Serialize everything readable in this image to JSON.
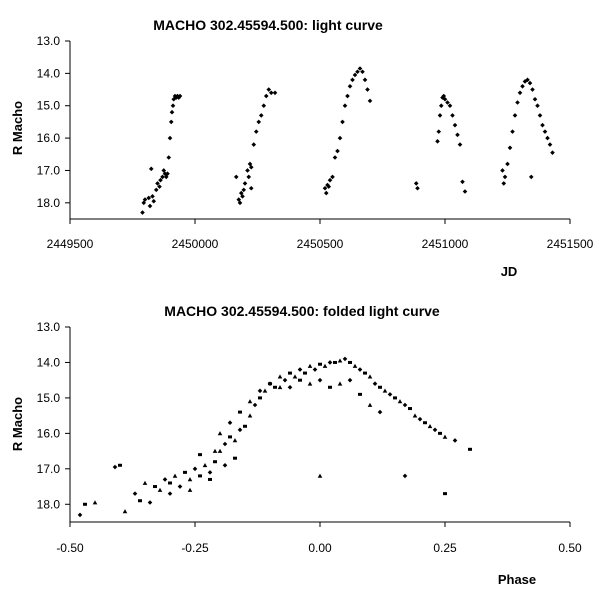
{
  "chart_data": [
    {
      "type": "scatter",
      "title": "MACHO 302.45594.500: light curve",
      "xlabel": "JD",
      "ylabel": "R Macho",
      "xlim": [
        2449500,
        2451500
      ],
      "ylim": [
        13.0,
        18.5
      ],
      "y_inverted": true,
      "grid": false,
      "xticks": [
        "2449500",
        "2450000",
        "2450500",
        "2451000",
        "2451500"
      ],
      "yticks": [
        "13.0",
        "14.0",
        "15.0",
        "16.0",
        "17.0",
        "18.0"
      ],
      "marker": "diamond",
      "series": [
        {
          "color": "#000000",
          "points": [
            [
              2449790,
              18.3
            ],
            [
              2449795,
              18.0
            ],
            [
              2449800,
              17.9
            ],
            [
              2449815,
              17.85
            ],
            [
              2449820,
              18.1
            ],
            [
              2449830,
              17.8
            ],
            [
              2449835,
              17.95
            ],
            [
              2449845,
              17.6
            ],
            [
              2449850,
              17.4
            ],
            [
              2449858,
              17.5
            ],
            [
              2449862,
              17.3
            ],
            [
              2449870,
              17.2
            ],
            [
              2449875,
              17.0
            ],
            [
              2449880,
              17.1
            ],
            [
              2449885,
              17.2
            ],
            [
              2449890,
              17.1
            ],
            [
              2449895,
              16.6
            ],
            [
              2449900,
              16.0
            ],
            [
              2449905,
              15.5
            ],
            [
              2449908,
              15.2
            ],
            [
              2449912,
              15.0
            ],
            [
              2449915,
              14.8
            ],
            [
              2449920,
              14.7
            ],
            [
              2449925,
              14.75
            ],
            [
              2449930,
              14.7
            ],
            [
              2449935,
              14.75
            ],
            [
              2449940,
              14.7
            ],
            [
              2449825,
              16.95
            ],
            [
              2450165,
              17.2
            ],
            [
              2450175,
              17.9
            ],
            [
              2450180,
              18.0
            ],
            [
              2450185,
              17.7
            ],
            [
              2450190,
              17.8
            ],
            [
              2450195,
              17.6
            ],
            [
              2450200,
              17.4
            ],
            [
              2450210,
              17.0
            ],
            [
              2450215,
              17.2
            ],
            [
              2450220,
              16.8
            ],
            [
              2450225,
              16.9
            ],
            [
              2450235,
              16.2
            ],
            [
              2450245,
              15.8
            ],
            [
              2450255,
              15.5
            ],
            [
              2450265,
              15.3
            ],
            [
              2450275,
              15.0
            ],
            [
              2450285,
              14.7
            ],
            [
              2450295,
              14.5
            ],
            [
              2450305,
              14.6
            ],
            [
              2450320,
              14.6
            ],
            [
              2450225,
              17.55
            ],
            [
              2450520,
              17.55
            ],
            [
              2450525,
              17.7
            ],
            [
              2450530,
              17.45
            ],
            [
              2450535,
              17.5
            ],
            [
              2450540,
              17.3
            ],
            [
              2450550,
              17.2
            ],
            [
              2450560,
              16.6
            ],
            [
              2450570,
              16.4
            ],
            [
              2450580,
              16.0
            ],
            [
              2450590,
              15.5
            ],
            [
              2450600,
              15.0
            ],
            [
              2450610,
              14.7
            ],
            [
              2450620,
              14.4
            ],
            [
              2450630,
              14.2
            ],
            [
              2450640,
              14.05
            ],
            [
              2450650,
              13.95
            ],
            [
              2450660,
              13.85
            ],
            [
              2450670,
              13.95
            ],
            [
              2450680,
              14.2
            ],
            [
              2450690,
              14.5
            ],
            [
              2450700,
              14.85
            ],
            [
              2450885,
              17.4
            ],
            [
              2450890,
              17.55
            ],
            [
              2450970,
              16.1
            ],
            [
              2450975,
              15.8
            ],
            [
              2450980,
              15.3
            ],
            [
              2450985,
              15.0
            ],
            [
              2450990,
              14.75
            ],
            [
              2450995,
              14.7
            ],
            [
              2451000,
              14.8
            ],
            [
              2451010,
              14.9
            ],
            [
              2451020,
              15.0
            ],
            [
              2451030,
              15.3
            ],
            [
              2451040,
              15.6
            ],
            [
              2451050,
              15.9
            ],
            [
              2451060,
              16.2
            ],
            [
              2451070,
              17.35
            ],
            [
              2451080,
              17.65
            ],
            [
              2451230,
              17.0
            ],
            [
              2451235,
              17.4
            ],
            [
              2451240,
              17.2
            ],
            [
              2451250,
              16.8
            ],
            [
              2451260,
              16.3
            ],
            [
              2451270,
              15.8
            ],
            [
              2451280,
              15.3
            ],
            [
              2451290,
              14.9
            ],
            [
              2451300,
              14.6
            ],
            [
              2451310,
              14.4
            ],
            [
              2451320,
              14.25
            ],
            [
              2451330,
              14.2
            ],
            [
              2451340,
              14.3
            ],
            [
              2451350,
              14.5
            ],
            [
              2451360,
              14.8
            ],
            [
              2451370,
              15.0
            ],
            [
              2451380,
              15.3
            ],
            [
              2451390,
              15.6
            ],
            [
              2451400,
              15.8
            ],
            [
              2451410,
              16.0
            ],
            [
              2451420,
              16.2
            ],
            [
              2451430,
              16.45
            ],
            [
              2451345,
              17.2
            ]
          ]
        }
      ]
    },
    {
      "type": "scatter",
      "title": "MACHO 302.45594.500: folded light curve",
      "xlabel": "Phase",
      "ylabel": "R Macho",
      "xlim": [
        -0.5,
        0.5
      ],
      "ylim": [
        13.0,
        18.5
      ],
      "y_inverted": true,
      "grid": false,
      "xticks": [
        "-0.50",
        "-0.25",
        "0.00",
        "0.25",
        "0.50"
      ],
      "yticks": [
        "13.0",
        "14.0",
        "15.0",
        "16.0",
        "17.0",
        "18.0"
      ],
      "marker": "mixed",
      "series": [
        {
          "color": "#000000",
          "points": [
            [
              -0.48,
              18.3
            ],
            [
              -0.47,
              18.0
            ],
            [
              -0.45,
              17.95
            ],
            [
              -0.41,
              16.95
            ],
            [
              -0.4,
              16.9
            ],
            [
              -0.39,
              18.2
            ],
            [
              -0.37,
              17.7
            ],
            [
              -0.36,
              17.9
            ],
            [
              -0.35,
              17.4
            ],
            [
              -0.34,
              17.95
            ],
            [
              -0.33,
              17.5
            ],
            [
              -0.32,
              17.6
            ],
            [
              -0.31,
              17.3
            ],
            [
              -0.3,
              17.4
            ],
            [
              -0.29,
              17.2
            ],
            [
              -0.28,
              17.5
            ],
            [
              -0.27,
              17.1
            ],
            [
              -0.26,
              17.3
            ],
            [
              -0.25,
              17.0
            ],
            [
              -0.24,
              17.2
            ],
            [
              -0.23,
              16.9
            ],
            [
              -0.22,
              17.1
            ],
            [
              -0.21,
              16.8
            ],
            [
              -0.2,
              16.5
            ],
            [
              -0.19,
              16.3
            ],
            [
              -0.18,
              16.1
            ],
            [
              -0.17,
              16.2
            ],
            [
              -0.16,
              15.9
            ],
            [
              -0.15,
              15.8
            ],
            [
              -0.14,
              15.5
            ],
            [
              -0.13,
              15.2
            ],
            [
              -0.12,
              15.0
            ],
            [
              -0.11,
              14.8
            ],
            [
              -0.1,
              14.6
            ],
            [
              -0.09,
              14.7
            ],
            [
              -0.08,
              14.4
            ],
            [
              -0.07,
              14.5
            ],
            [
              -0.06,
              14.3
            ],
            [
              -0.05,
              14.4
            ],
            [
              -0.04,
              14.2
            ],
            [
              -0.03,
              14.3
            ],
            [
              -0.02,
              14.1
            ],
            [
              -0.01,
              14.2
            ],
            [
              0.0,
              14.05
            ],
            [
              0.01,
              14.1
            ],
            [
              0.02,
              14.0
            ],
            [
              0.03,
              14.0
            ],
            [
              0.04,
              13.95
            ],
            [
              0.05,
              13.9
            ],
            [
              0.06,
              14.0
            ],
            [
              0.07,
              14.1
            ],
            [
              0.08,
              14.2
            ],
            [
              0.09,
              14.3
            ],
            [
              0.1,
              14.4
            ],
            [
              0.11,
              14.6
            ],
            [
              0.12,
              14.7
            ],
            [
              0.13,
              14.8
            ],
            [
              0.14,
              14.9
            ],
            [
              0.15,
              15.0
            ],
            [
              0.16,
              15.1
            ],
            [
              0.17,
              15.2
            ],
            [
              0.18,
              15.3
            ],
            [
              0.19,
              15.5
            ],
            [
              0.2,
              15.6
            ],
            [
              0.21,
              15.7
            ],
            [
              0.22,
              15.8
            ],
            [
              0.23,
              15.9
            ],
            [
              0.24,
              16.0
            ],
            [
              0.25,
              16.1
            ],
            [
              0.27,
              16.2
            ],
            [
              0.3,
              16.45
            ],
            [
              0.0,
              17.2
            ],
            [
              0.17,
              17.2
            ],
            [
              0.25,
              17.7
            ],
            [
              -0.2,
              16.0
            ],
            [
              -0.18,
              15.7
            ],
            [
              -0.16,
              15.4
            ],
            [
              -0.14,
              15.1
            ],
            [
              -0.12,
              14.8
            ],
            [
              -0.1,
              14.6
            ],
            [
              -0.08,
              14.7
            ],
            [
              -0.06,
              14.7
            ],
            [
              -0.04,
              14.5
            ],
            [
              -0.02,
              14.6
            ],
            [
              0.0,
              14.5
            ],
            [
              0.02,
              14.7
            ],
            [
              0.04,
              14.6
            ],
            [
              0.06,
              14.5
            ],
            [
              0.08,
              14.9
            ],
            [
              0.1,
              15.2
            ],
            [
              0.12,
              15.4
            ],
            [
              -0.22,
              17.3
            ],
            [
              -0.26,
              17.6
            ],
            [
              -0.3,
              17.7
            ],
            [
              -0.24,
              16.6
            ],
            [
              -0.21,
              16.5
            ],
            [
              -0.19,
              16.9
            ],
            [
              -0.17,
              16.7
            ]
          ]
        }
      ]
    }
  ]
}
